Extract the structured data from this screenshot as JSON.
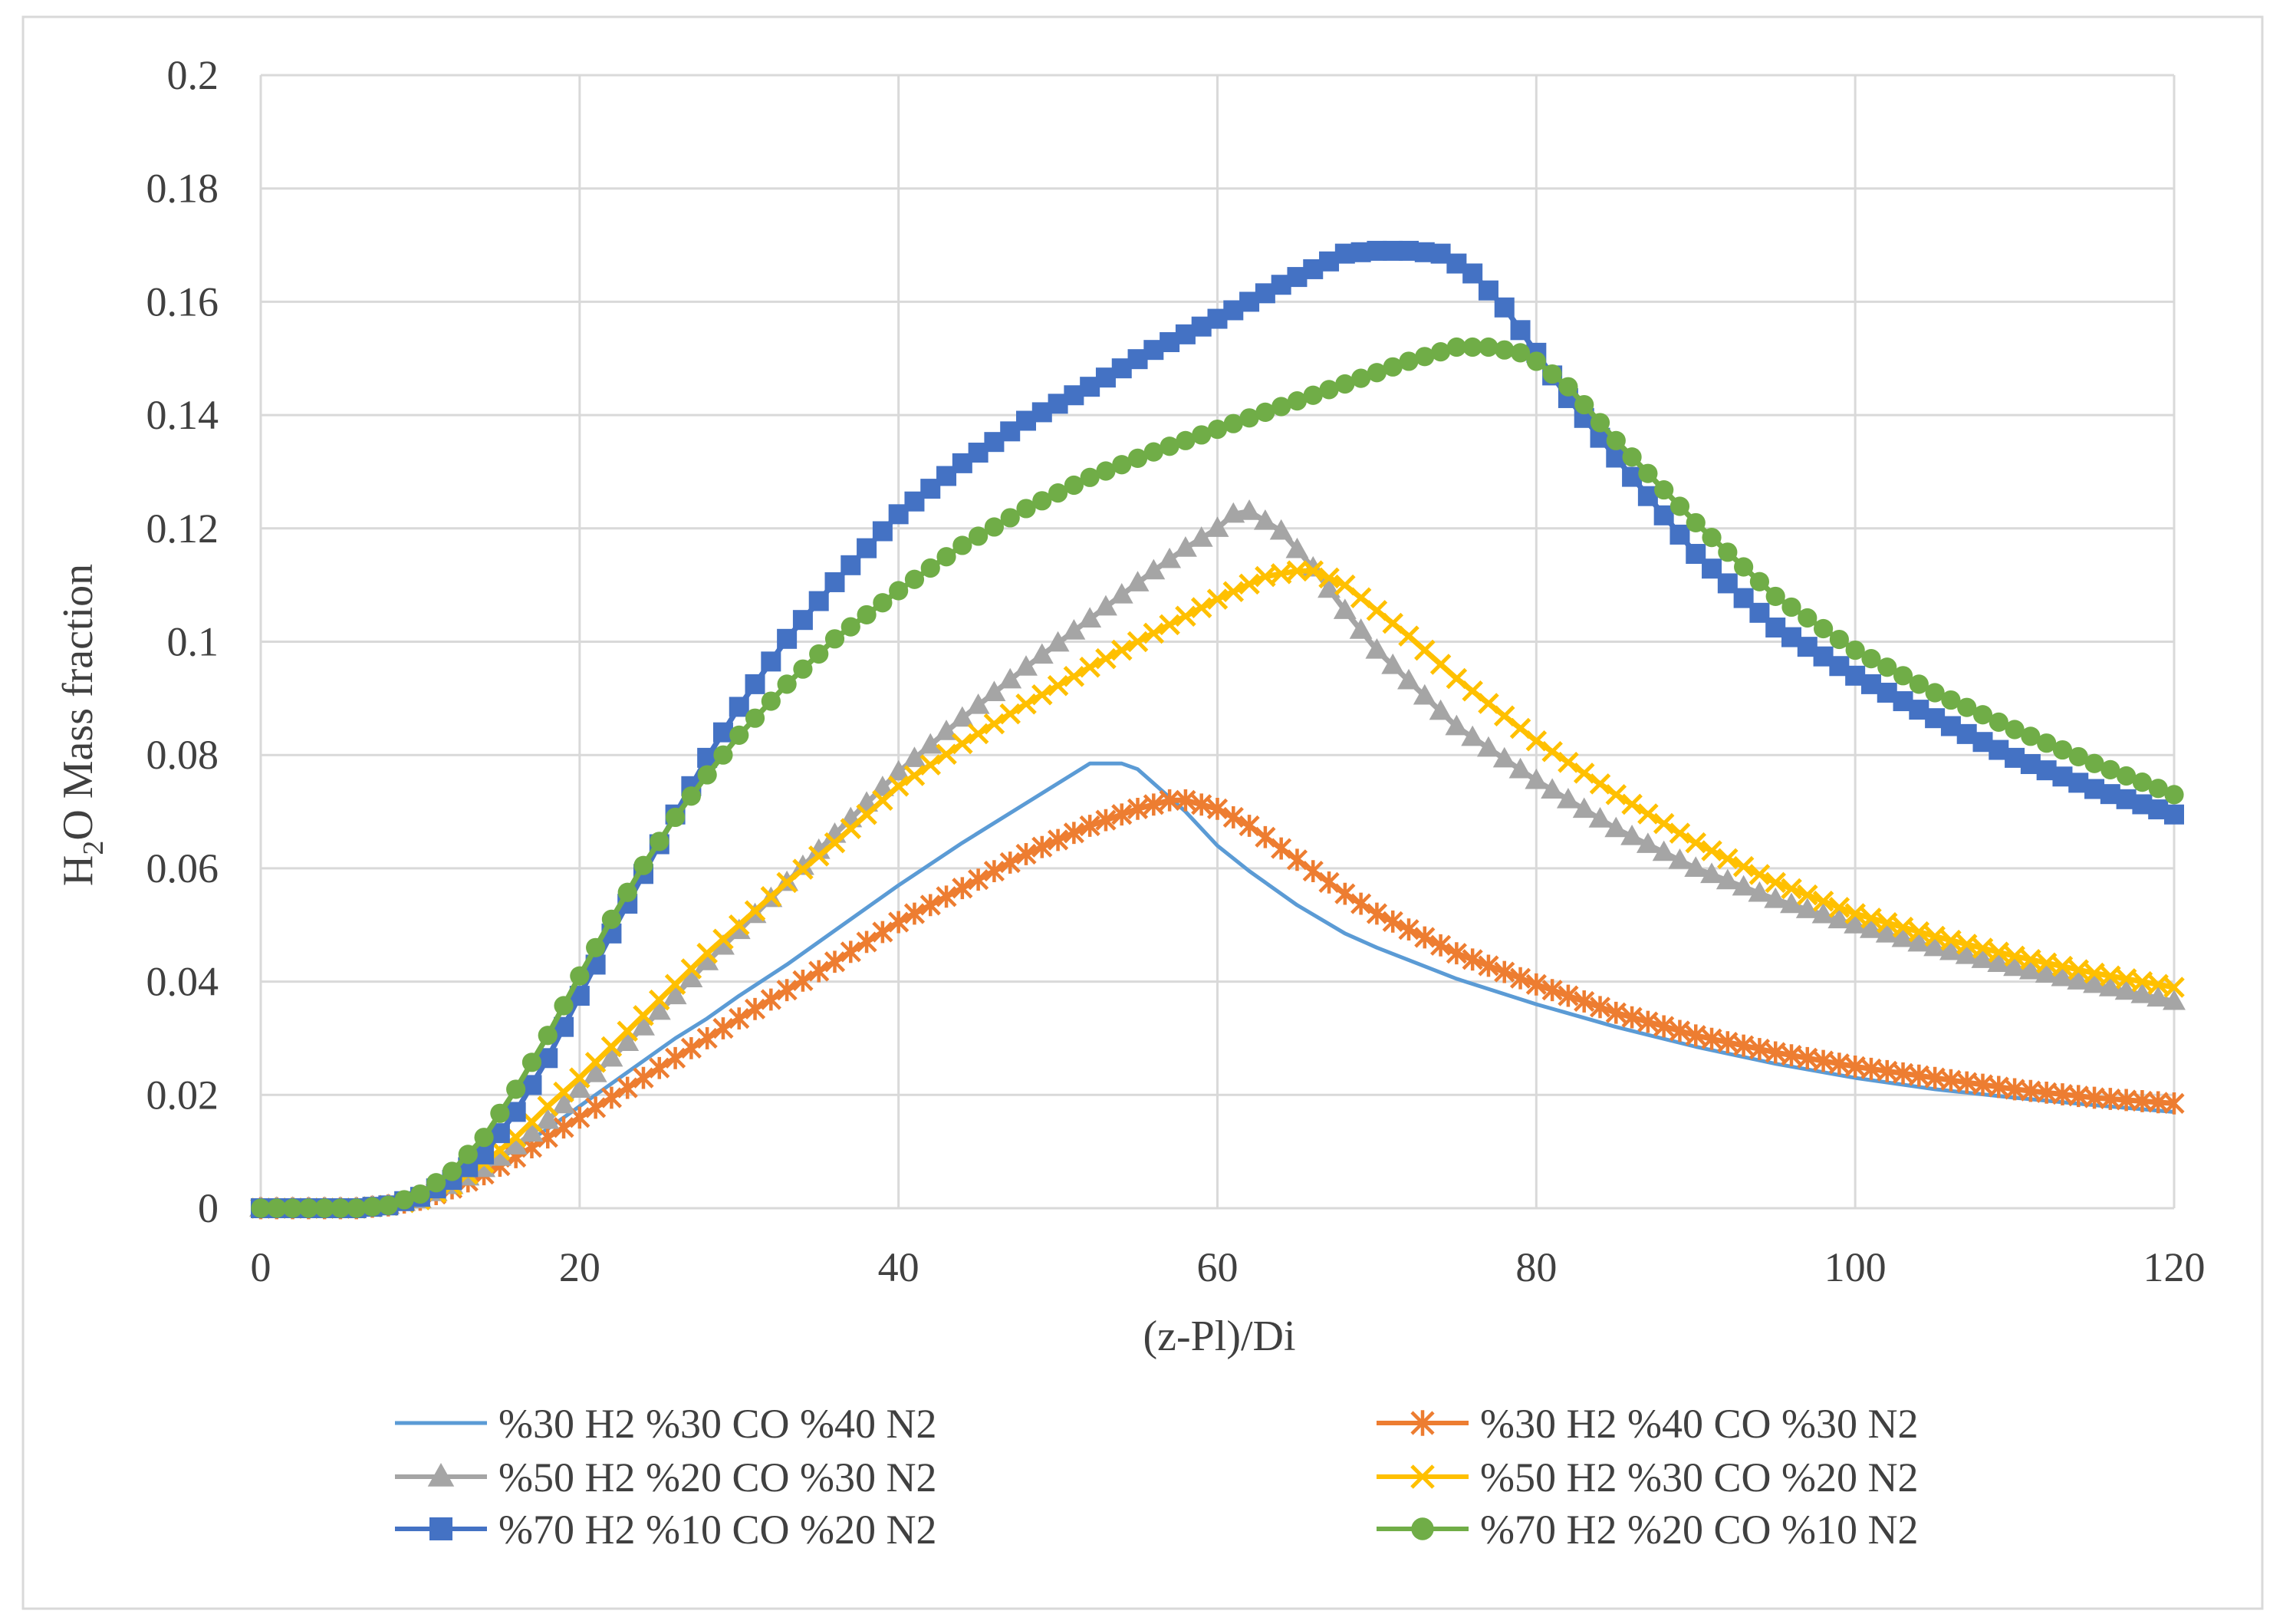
{
  "chart_data": {
    "type": "line",
    "title": "",
    "xlabel": "(z-Pl)/Di",
    "ylabel_main": "H",
    "ylabel_sub": "2",
    "ylabel_rest": "O Mass fraction",
    "xlim": [
      0,
      120
    ],
    "ylim": [
      0,
      0.2
    ],
    "x_ticks": [
      0,
      20,
      40,
      60,
      80,
      100,
      120
    ],
    "y_ticks": [
      0,
      0.02,
      0.04,
      0.06,
      0.08,
      0.1,
      0.12,
      0.14,
      0.16,
      0.18,
      0.2
    ],
    "x_tick_labels": [
      "0",
      "20",
      "40",
      "60",
      "80",
      "100",
      "120"
    ],
    "y_tick_labels": [
      "0",
      "0.02",
      "0.04",
      "0.06",
      "0.08",
      "0.1",
      "0.12",
      "0.14",
      "0.16",
      "0.18",
      "0.2"
    ],
    "grid": true,
    "legend_position": "bottom",
    "series": [
      {
        "name": "%30 H2 %30 CO  %40 N2",
        "color": "#5B9BD5",
        "marker": "none",
        "x": [
          0,
          6,
          8,
          10,
          12,
          14,
          16,
          18,
          20,
          22,
          24,
          26,
          28,
          30,
          33,
          36,
          40,
          44,
          48,
          50,
          52,
          54,
          55,
          56,
          58,
          60,
          62,
          65,
          68,
          70,
          75,
          80,
          85,
          90,
          95,
          100,
          105,
          110,
          115,
          120
        ],
        "values": [
          0,
          0,
          0.0005,
          0.002,
          0.004,
          0.007,
          0.0105,
          0.014,
          0.018,
          0.022,
          0.026,
          0.03,
          0.0335,
          0.0375,
          0.043,
          0.049,
          0.057,
          0.0645,
          0.0715,
          0.075,
          0.0785,
          0.0785,
          0.0775,
          0.075,
          0.07,
          0.064,
          0.0595,
          0.0535,
          0.0485,
          0.046,
          0.0405,
          0.036,
          0.032,
          0.0285,
          0.0255,
          0.023,
          0.021,
          0.0195,
          0.0182,
          0.017
        ]
      },
      {
        "name": "%30 H2 %40 CO  %30 N2",
        "color": "#ED7D31",
        "marker": "star",
        "x": [
          0,
          6,
          8,
          10,
          12,
          14,
          16,
          18,
          20,
          22,
          24,
          26,
          28,
          30,
          33,
          36,
          40,
          44,
          48,
          52,
          55,
          57,
          58,
          60,
          62,
          65,
          68,
          70,
          75,
          80,
          85,
          90,
          95,
          100,
          105,
          110,
          115,
          120
        ],
        "values": [
          0,
          0,
          0.0005,
          0.0015,
          0.0035,
          0.006,
          0.009,
          0.0125,
          0.016,
          0.0195,
          0.023,
          0.0265,
          0.03,
          0.0335,
          0.0385,
          0.0435,
          0.0505,
          0.0565,
          0.0625,
          0.0675,
          0.0705,
          0.072,
          0.072,
          0.0705,
          0.0675,
          0.0615,
          0.0555,
          0.052,
          0.045,
          0.0395,
          0.0345,
          0.0305,
          0.0275,
          0.025,
          0.023,
          0.021,
          0.0195,
          0.0185
        ]
      },
      {
        "name": "%50 H2 %20 CO  %30 N2",
        "color": "#A5A5A5",
        "marker": "triangle",
        "x": [
          0,
          6,
          8,
          10,
          12,
          14,
          16,
          18,
          20,
          22,
          24,
          26,
          28,
          30,
          33,
          36,
          40,
          44,
          48,
          52,
          56,
          58,
          60,
          61,
          62,
          64,
          66,
          68,
          70,
          75,
          80,
          85,
          90,
          95,
          100,
          105,
          110,
          115,
          120
        ],
        "values": [
          0,
          0,
          0.0005,
          0.0015,
          0.004,
          0.007,
          0.011,
          0.0155,
          0.021,
          0.0265,
          0.032,
          0.0375,
          0.0435,
          0.049,
          0.0575,
          0.066,
          0.077,
          0.0865,
          0.0955,
          0.104,
          0.1125,
          0.1165,
          0.12,
          0.1225,
          0.123,
          0.1195,
          0.113,
          0.1055,
          0.0985,
          0.085,
          0.0755,
          0.067,
          0.06,
          0.0545,
          0.05,
          0.046,
          0.0425,
          0.0395,
          0.0365
        ]
      },
      {
        "name": "%50 H2 %30 CO  %20 N2",
        "color": "#FFC000",
        "marker": "x",
        "x": [
          0,
          6,
          8,
          10,
          12,
          14,
          16,
          18,
          20,
          22,
          24,
          26,
          28,
          30,
          33,
          36,
          40,
          44,
          48,
          52,
          56,
          60,
          63,
          65,
          66,
          68,
          70,
          72,
          75,
          80,
          85,
          90,
          95,
          100,
          105,
          110,
          115,
          120
        ],
        "values": [
          0,
          0,
          0.0005,
          0.0015,
          0.004,
          0.008,
          0.0125,
          0.018,
          0.023,
          0.0285,
          0.034,
          0.0395,
          0.045,
          0.05,
          0.0575,
          0.0645,
          0.0745,
          0.082,
          0.089,
          0.0955,
          0.1015,
          0.1075,
          0.1115,
          0.1125,
          0.1125,
          0.11,
          0.1055,
          0.101,
          0.0935,
          0.0825,
          0.073,
          0.0645,
          0.0575,
          0.052,
          0.048,
          0.0445,
          0.0415,
          0.039
        ]
      },
      {
        "name": "%70 H2 %10 CO  %20 N2",
        "color": "#4472C4",
        "marker": "square",
        "x": [
          0,
          6,
          8,
          10,
          12,
          14,
          16,
          18,
          20,
          22,
          24,
          26,
          28,
          30,
          33,
          36,
          40,
          44,
          48,
          52,
          56,
          60,
          64,
          68,
          70,
          72,
          74,
          76,
          78,
          80,
          82,
          85,
          90,
          95,
          100,
          105,
          110,
          115,
          120
        ],
        "values": [
          0,
          0,
          0.0005,
          0.002,
          0.005,
          0.0095,
          0.017,
          0.0265,
          0.0375,
          0.0485,
          0.059,
          0.0695,
          0.0795,
          0.0885,
          0.1005,
          0.1105,
          0.1225,
          0.1315,
          0.139,
          0.145,
          0.1515,
          0.157,
          0.163,
          0.1685,
          0.169,
          0.169,
          0.1685,
          0.165,
          0.159,
          0.151,
          0.143,
          0.1325,
          0.1155,
          0.1025,
          0.094,
          0.0865,
          0.0795,
          0.074,
          0.0695
        ]
      },
      {
        "name": "%70 H2 %20 CO  %10 N2",
        "color": "#70AD47",
        "marker": "circle",
        "x": [
          0,
          6,
          8,
          10,
          12,
          14,
          16,
          18,
          20,
          22,
          24,
          26,
          28,
          30,
          33,
          36,
          40,
          44,
          48,
          52,
          56,
          60,
          64,
          68,
          72,
          75,
          77,
          78,
          79,
          80,
          82,
          85,
          90,
          95,
          100,
          105,
          110,
          115,
          120
        ],
        "values": [
          0,
          0,
          0.0005,
          0.0025,
          0.0065,
          0.0125,
          0.021,
          0.0305,
          0.041,
          0.051,
          0.0605,
          0.069,
          0.0765,
          0.0835,
          0.0925,
          0.1005,
          0.109,
          0.117,
          0.1235,
          0.129,
          0.1335,
          0.1375,
          0.1415,
          0.1455,
          0.1495,
          0.152,
          0.152,
          0.1515,
          0.151,
          0.1495,
          0.145,
          0.1355,
          0.121,
          0.108,
          0.0985,
          0.091,
          0.0845,
          0.0785,
          0.073
        ]
      }
    ]
  }
}
